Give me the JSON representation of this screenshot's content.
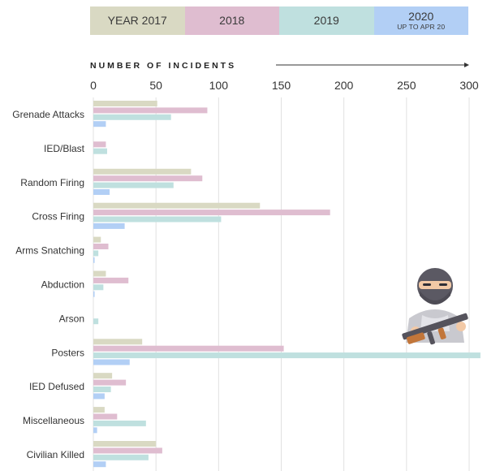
{
  "chart_data": {
    "type": "bar",
    "orientation": "horizontal",
    "xlabel": "NUMBER OF INCIDENTS",
    "xlim": [
      0,
      300
    ],
    "xticks": [
      0,
      50,
      100,
      150,
      200,
      250,
      300
    ],
    "grid": true,
    "legend_position": "top",
    "categories": [
      "Grenade Attacks",
      "IED/Blast",
      "Random Firing",
      "Cross Firing",
      "Arms Snatching",
      "Abduction",
      "Arson",
      "Posters",
      "IED Defused",
      "Miscellaneous",
      "Civilian Killed"
    ],
    "series": [
      {
        "name": "YEAR 2017",
        "sub": "",
        "color": "#d9d9c3",
        "values": [
          51,
          0,
          78,
          133,
          6,
          10,
          0,
          39,
          15,
          9,
          50
        ]
      },
      {
        "name": "2018",
        "sub": "",
        "color": "#dfbdd0",
        "values": [
          91,
          10,
          87,
          189,
          12,
          28,
          0,
          152,
          26,
          19,
          55
        ]
      },
      {
        "name": "2019",
        "sub": "",
        "color": "#bfe0df",
        "values": [
          62,
          11,
          64,
          102,
          4,
          8,
          4,
          309,
          14,
          42,
          44
        ]
      },
      {
        "name": "2020",
        "sub": "UP TO APR 20",
        "color": "#b2cff5",
        "values": [
          10,
          0,
          13,
          25,
          1,
          1,
          0,
          29,
          9,
          3,
          10
        ]
      }
    ]
  }
}
